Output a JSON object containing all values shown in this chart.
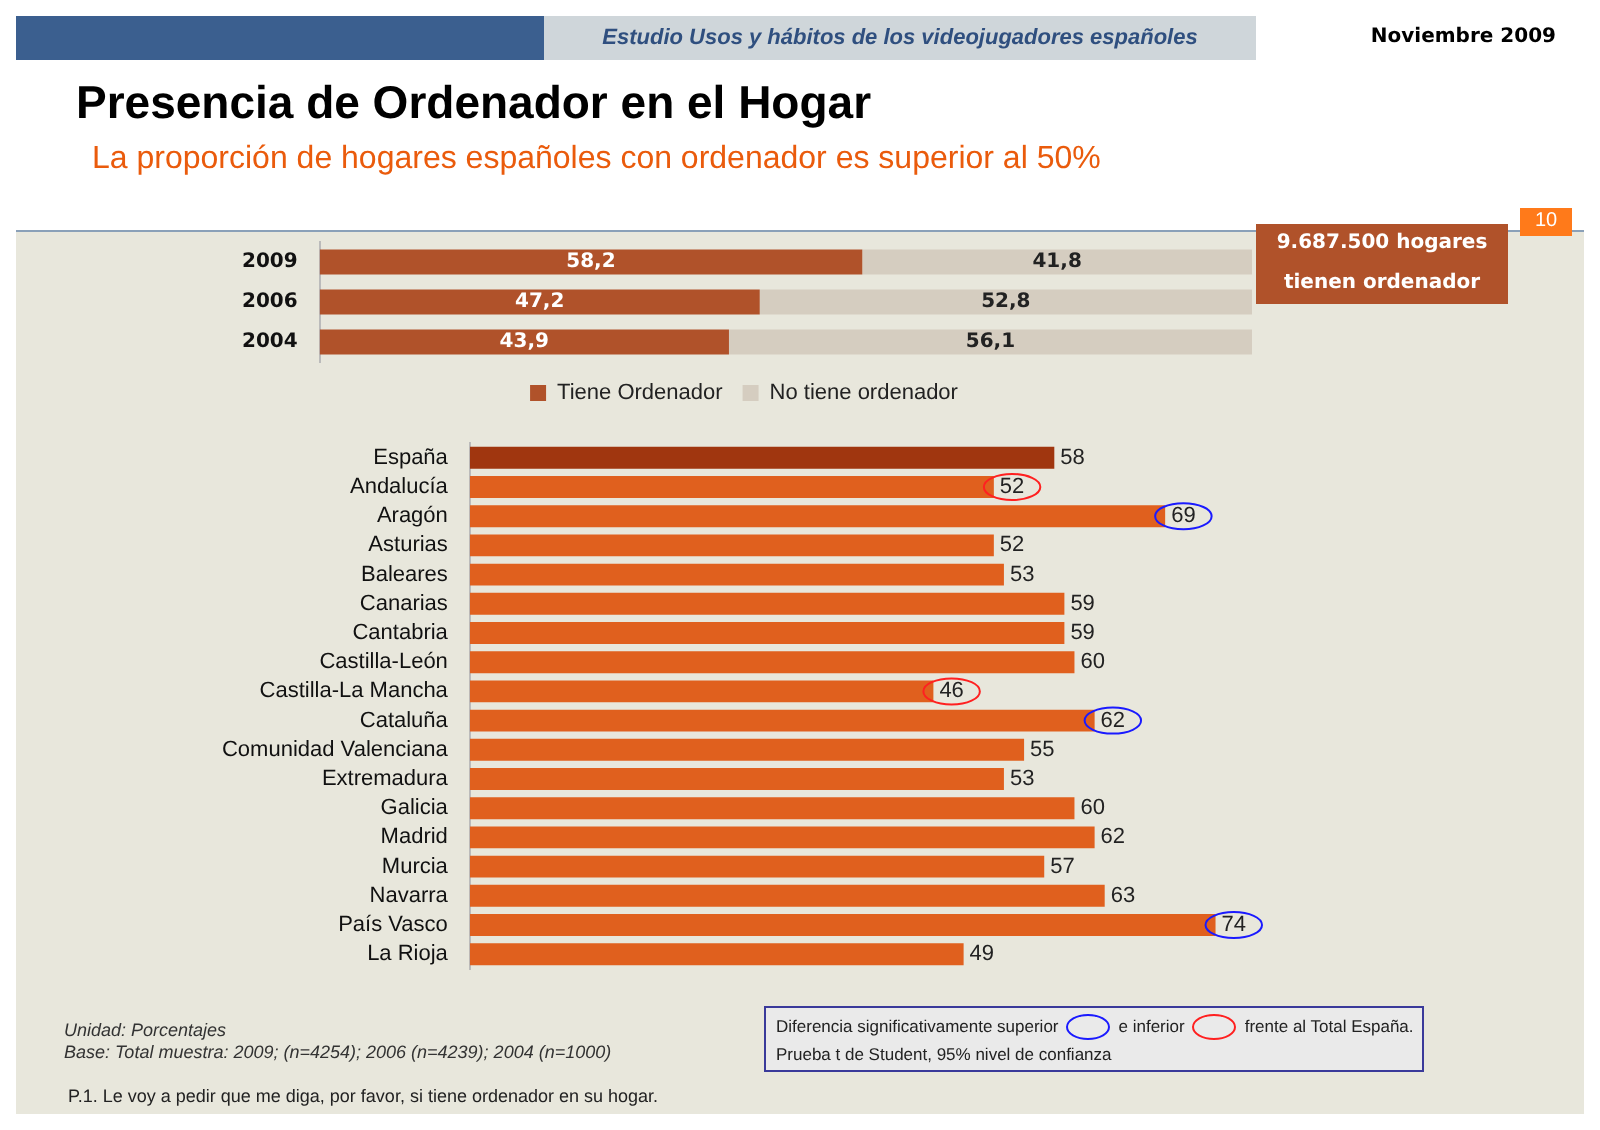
{
  "chart_data": [
    {
      "type": "bar",
      "title": "Presencia de Ordenador en el Hogar",
      "subtitle": "La proporción de hogares españoles con ordenador es superior al 50%",
      "orientation": "horizontal",
      "stacked": true,
      "legend": "bottom",
      "tick_labels": "y",
      "categories": [
        "2009",
        "2006",
        "2004"
      ],
      "series": [
        {
          "name": "Tiene Ordenador",
          "color": "#b0522a",
          "values": [
            58.2,
            47.2,
            43.9
          ],
          "value_labels": [
            "58,2",
            "47,2",
            "43,9"
          ]
        },
        {
          "name": "No tiene ordenador",
          "color": "#d5cdc0",
          "values": [
            41.8,
            52.8,
            56.1
          ],
          "value_labels": [
            "41,8",
            "52,8",
            "56,1"
          ]
        }
      ],
      "annotations": [
        "Estudio Usos y hábitos de los videojugadores españoles",
        "Noviembre 2009",
        "10",
        "9.687.500 hogares tienen ordenador"
      ]
    },
    {
      "type": "bar",
      "orientation": "horizontal",
      "tick_labels": "y",
      "categories": [
        "España",
        "Andalucía",
        "Aragón",
        "Asturias",
        "Baleares",
        "Canarias",
        "Cantabria",
        "Castilla-León",
        "Castilla-La Mancha",
        "Cataluña",
        "Comunidad Valenciana",
        "Extremadura",
        "Galicia",
        "Madrid",
        "Murcia",
        "Navarra",
        "País Vasco",
        "La Rioja"
      ],
      "values": [
        58,
        52,
        69,
        52,
        53,
        59,
        59,
        60,
        46,
        62,
        55,
        53,
        60,
        62,
        57,
        63,
        74,
        49
      ],
      "colors": [
        "#a0360f",
        "#e0601e",
        "#e0601e",
        "#e0601e",
        "#e0601e",
        "#e0601e",
        "#e0601e",
        "#e0601e",
        "#e0601e",
        "#e0601e",
        "#e0601e",
        "#e0601e",
        "#e0601e",
        "#e0601e",
        "#e0601e",
        "#e0601e",
        "#e0601e",
        "#e0601e"
      ],
      "value_labels": [
        "58",
        null,
        null,
        "52",
        "53",
        "59",
        "59",
        "60",
        null,
        null,
        "55",
        "53",
        "60",
        "62",
        "57",
        "63",
        null,
        "49"
      ],
      "annotations": [
        {
          "text": "52",
          "x": 52,
          "y": "Andalucía"
        },
        {
          "text": "69",
          "x": 69,
          "y": "Aragón"
        },
        {
          "text": "46",
          "x": 46,
          "y": "Castilla-La Mancha"
        },
        {
          "text": "62",
          "x": 62,
          "y": "Cataluña"
        },
        {
          "text": "74",
          "x": 74,
          "y": "País Vasco"
        },
        "Unidad: Porcentajes",
        "Base: Total muestra: 2009; (n=4254); 2006 (n=4239); 2004 (n=1000)",
        "P.1. Le voy a pedir que me diga, por favor, si tiene ordenador en su hogar.",
        "Diferencia significativamente superior",
        "e inferior",
        "frente al Total España.",
        "Prueba t de Student, 95% nivel de confianza"
      ]
    }
  ]
}
